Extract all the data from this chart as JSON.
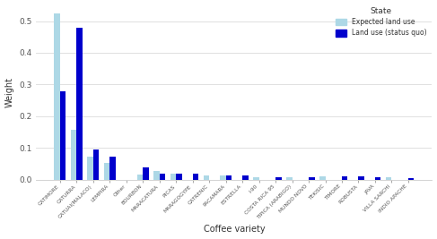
{
  "categories": [
    "CATIMORE",
    "CATURRA",
    "CATUAI(MALACO)",
    "LEMPIRA",
    "Other",
    "BOURBON",
    "MARACATURA",
    "PICAS",
    "MARAGOGYPE",
    "CATRENIC",
    "PACAMARA",
    "ESTRELLA",
    "I-90",
    "COSTA RICA 95",
    "TIPICA (ARABIGO)",
    "MUNDO NOVO",
    "TEKISIC",
    "TIMORE",
    "ROBUSTA",
    "JAVA",
    "VILLA SARCHI",
    "INDIO APACHE"
  ],
  "expected_land_use": [
    0.525,
    0.158,
    0.073,
    0.052,
    0.0,
    0.015,
    0.028,
    0.02,
    0.0,
    0.013,
    0.013,
    0.0,
    0.008,
    0.0,
    0.008,
    0.0,
    0.011,
    0.0,
    0.0,
    0.0,
    0.008,
    0.0
  ],
  "land_use_status_quo": [
    0.278,
    0.48,
    0.095,
    0.072,
    0.0,
    0.038,
    0.018,
    0.02,
    0.018,
    0.0,
    0.013,
    0.013,
    0.0,
    0.008,
    0.0,
    0.008,
    0.0,
    0.011,
    0.011,
    0.008,
    0.0,
    0.005
  ],
  "color_expected": "#ADD8E6",
  "color_status_quo": "#0000CC",
  "ylabel": "Weight",
  "xlabel": "Coffee variety",
  "legend_title": "State",
  "legend_label_expected": "Expected land use",
  "legend_label_status_quo": "Land use (status quo)",
  "ylim": [
    0,
    0.55
  ],
  "yticks": [
    0.0,
    0.1,
    0.2,
    0.3,
    0.4,
    0.5
  ],
  "bg_color": "#ffffff",
  "plot_bg_color": "#ffffff",
  "grid_color": "#e0e0e0"
}
